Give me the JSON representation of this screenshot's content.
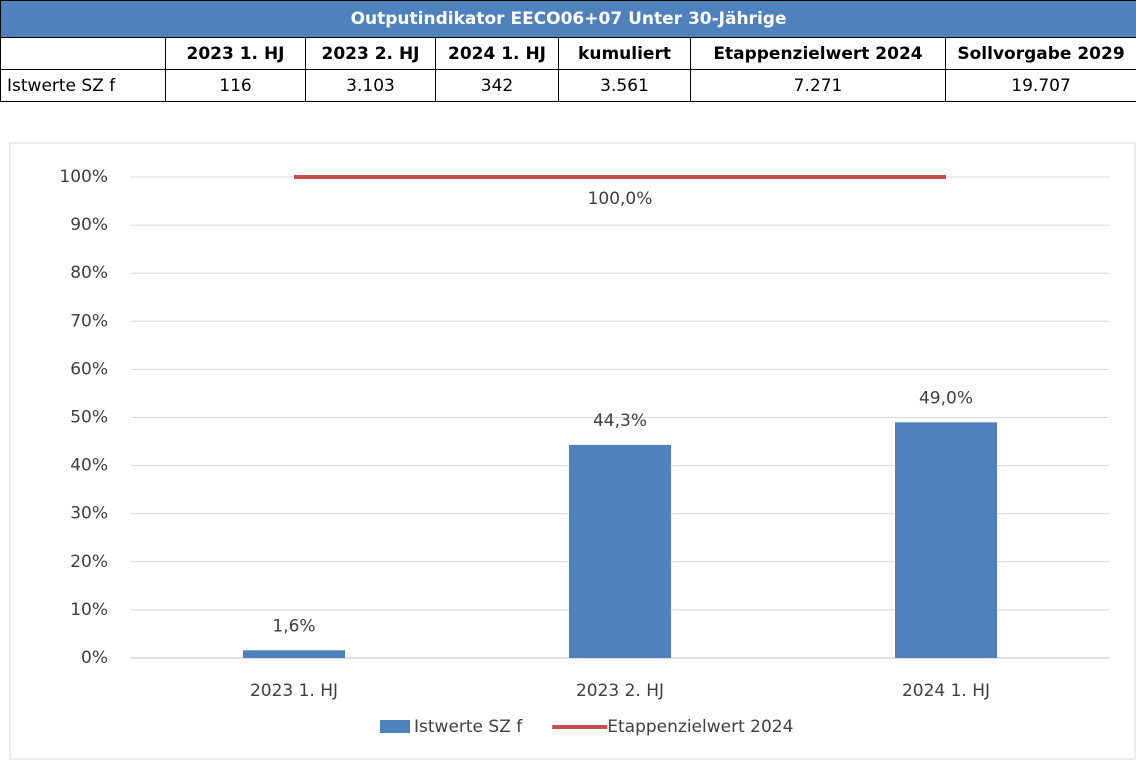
{
  "table": {
    "title": "Outputindikator EECO06+07 Unter 30-Jährige",
    "header": [
      null,
      "2023 1. HJ",
      "2023 2. HJ",
      "2024 1. HJ",
      "kumuliert",
      "Etappenzielwert 2024",
      "Sollvorgabe 2029"
    ],
    "rows": [
      [
        "Istwerte SZ f",
        "116",
        "3.103",
        "342",
        "3.561",
        "7.271",
        "19.707"
      ]
    ]
  },
  "chart_data": {
    "type": "bar",
    "categories": [
      "2023 1. HJ",
      "2023 2. HJ",
      "2024 1. HJ"
    ],
    "series": [
      {
        "name": "Istwerte SZ f",
        "type": "bar",
        "color": "#4f81bd",
        "values": [
          1.6,
          44.3,
          49.0
        ],
        "value_labels": [
          "1,6%",
          "44,3%",
          "49,0%"
        ]
      },
      {
        "name": "Etappenzielwert 2024",
        "type": "line",
        "color": "#c0504d",
        "values": [
          100,
          100,
          100
        ],
        "value_labels": [
          null,
          "100,0%",
          null
        ]
      }
    ],
    "ylim": [
      0,
      100
    ],
    "yticks": [
      {
        "value": 0,
        "label": "0%"
      },
      {
        "value": 10,
        "label": "10%"
      },
      {
        "value": 20,
        "label": "20%"
      },
      {
        "value": 30,
        "label": "30%"
      },
      {
        "value": 40,
        "label": "40%"
      },
      {
        "value": 50,
        "label": "50%"
      },
      {
        "value": 60,
        "label": "60%"
      },
      {
        "value": 70,
        "label": "70%"
      },
      {
        "value": 80,
        "label": "80%"
      },
      {
        "value": 90,
        "label": "90%"
      },
      {
        "value": 100,
        "label": "100%"
      }
    ],
    "grid": true,
    "legend": "bottom"
  }
}
